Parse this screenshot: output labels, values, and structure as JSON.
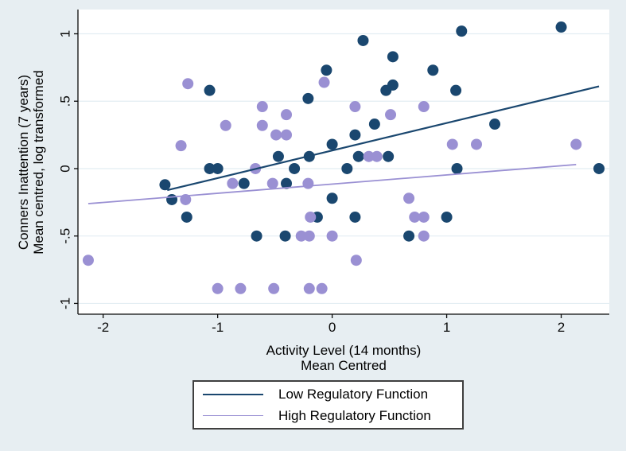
{
  "colors": {
    "background": "#e7eef2",
    "plot_background": "#ffffff",
    "gridline": "#e2edf2",
    "axis": "#0a0a0a",
    "low_series": "#1a476f",
    "high_series": "#9a90d3"
  },
  "chart_data": {
    "type": "scatter",
    "title": "",
    "xlabel": [
      "Activity Level (14 months)",
      "Mean Centred"
    ],
    "ylabel": [
      "Conners Inattention (7 years)",
      "Mean centred, log transformed"
    ],
    "xlim": [
      -2.22,
      2.42
    ],
    "ylim": [
      -1.08,
      1.18
    ],
    "xticks": [
      -2,
      -1,
      0,
      1,
      2
    ],
    "xtick_labels": [
      "-2",
      "-1",
      "0",
      "1",
      "2"
    ],
    "yticks": [
      -1,
      -0.5,
      0,
      0.5,
      1
    ],
    "ytick_labels": [
      "-1",
      "-.5",
      "0",
      ".5",
      "1"
    ],
    "grid": "horizontal",
    "legend_position": "bottom-center",
    "series": [
      {
        "name": "Low Regulatory Function",
        "color": "#1a476f",
        "marker_radius": 7,
        "line_width": 2.2,
        "points": [
          [
            2.0,
            1.05
          ],
          [
            1.13,
            1.02
          ],
          [
            0.27,
            0.95
          ],
          [
            0.53,
            0.83
          ],
          [
            -0.05,
            0.73
          ],
          [
            0.88,
            0.73
          ],
          [
            0.53,
            0.62
          ],
          [
            -1.07,
            0.58
          ],
          [
            0.47,
            0.58
          ],
          [
            1.08,
            0.58
          ],
          [
            -0.21,
            0.52
          ],
          [
            0.37,
            0.33
          ],
          [
            1.42,
            0.33
          ],
          [
            0.2,
            0.25
          ],
          [
            0.0,
            0.18
          ],
          [
            -0.47,
            0.09
          ],
          [
            -0.2,
            0.09
          ],
          [
            0.23,
            0.09
          ],
          [
            0.49,
            0.09
          ],
          [
            -1.07,
            0.0
          ],
          [
            -1.0,
            0.0
          ],
          [
            -0.33,
            0.0
          ],
          [
            0.13,
            0.0
          ],
          [
            1.09,
            0.0
          ],
          [
            2.33,
            0.0
          ],
          [
            -1.46,
            -0.12
          ],
          [
            -0.77,
            -0.11
          ],
          [
            -0.4,
            -0.11
          ],
          [
            -1.4,
            -0.23
          ],
          [
            0.0,
            -0.22
          ],
          [
            -1.27,
            -0.36
          ],
          [
            -0.13,
            -0.36
          ],
          [
            0.2,
            -0.36
          ],
          [
            1.0,
            -0.36
          ],
          [
            -0.66,
            -0.5
          ],
          [
            -0.41,
            -0.5
          ],
          [
            0.67,
            -0.5
          ]
        ],
        "fit_line": {
          "x": [
            -1.44,
            2.33
          ],
          "y": [
            -0.16,
            0.61
          ]
        }
      },
      {
        "name": "High Regulatory Function",
        "color": "#9a90d3",
        "marker_radius": 7,
        "line_width": 1.8,
        "points": [
          [
            -1.26,
            0.63
          ],
          [
            -0.07,
            0.64
          ],
          [
            -0.61,
            0.46
          ],
          [
            0.2,
            0.46
          ],
          [
            0.8,
            0.46
          ],
          [
            -0.4,
            0.4
          ],
          [
            0.51,
            0.4
          ],
          [
            -0.93,
            0.32
          ],
          [
            -0.61,
            0.32
          ],
          [
            -0.49,
            0.25
          ],
          [
            -0.4,
            0.25
          ],
          [
            -1.32,
            0.17
          ],
          [
            1.05,
            0.18
          ],
          [
            1.26,
            0.18
          ],
          [
            2.13,
            0.18
          ],
          [
            0.32,
            0.09
          ],
          [
            0.39,
            0.09
          ],
          [
            -0.67,
            0.0
          ],
          [
            -0.87,
            -0.11
          ],
          [
            -0.52,
            -0.11
          ],
          [
            -0.21,
            -0.11
          ],
          [
            -1.28,
            -0.23
          ],
          [
            0.67,
            -0.22
          ],
          [
            -0.19,
            -0.36
          ],
          [
            0.72,
            -0.36
          ],
          [
            0.8,
            -0.36
          ],
          [
            -0.27,
            -0.5
          ],
          [
            -0.2,
            -0.5
          ],
          [
            0.0,
            -0.5
          ],
          [
            0.8,
            -0.5
          ],
          [
            -2.13,
            -0.68
          ],
          [
            0.21,
            -0.68
          ],
          [
            -1.0,
            -0.89
          ],
          [
            -0.8,
            -0.89
          ],
          [
            -0.51,
            -0.89
          ],
          [
            -0.2,
            -0.89
          ],
          [
            -0.09,
            -0.89
          ]
        ],
        "fit_line": {
          "x": [
            -2.13,
            2.13
          ],
          "y": [
            -0.26,
            0.03
          ]
        }
      }
    ],
    "legend": {
      "items": [
        {
          "label": "Low Regulatory Function",
          "color": "#1a476f"
        },
        {
          "label": "High Regulatory Function",
          "color": "#9a90d3"
        }
      ]
    }
  }
}
